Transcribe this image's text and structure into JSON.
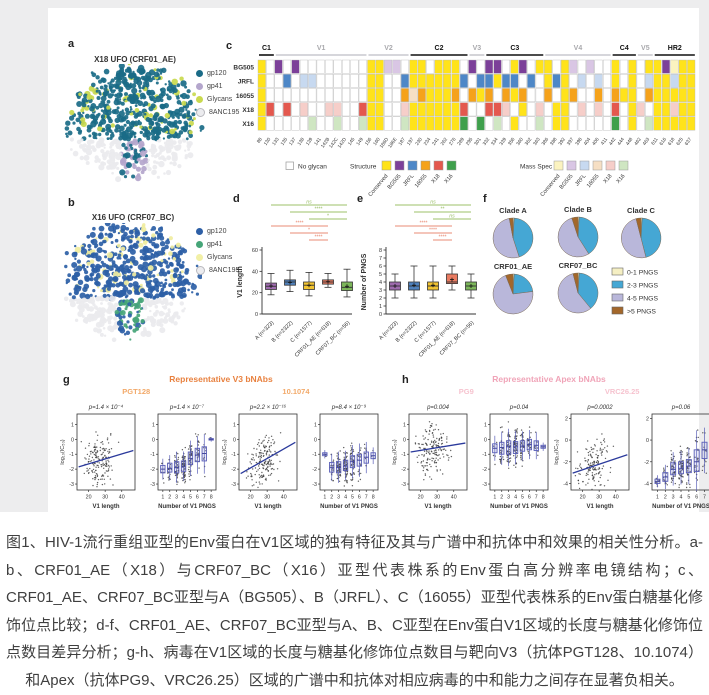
{
  "page_bg": "#ffffff",
  "a": {
    "label": "a",
    "title": "X18 UFO (CRF01_AE)",
    "legend": [
      {
        "label": "gp120",
        "color": "#1a6b87",
        "outline": false
      },
      {
        "label": "gp41",
        "color": "#b4a6cc",
        "outline": false
      },
      {
        "label": "Glycans",
        "color": "#c9d94e",
        "outline": false
      },
      {
        "label": "8ANC195",
        "color": "#ececef",
        "outline": true
      }
    ],
    "blob": {
      "gp120": "#1a6b87",
      "gp41": "#b4a6cc",
      "glycans": "#c9d94e",
      "fab": "#eaeaee",
      "seed": 7
    }
  },
  "b": {
    "label": "b",
    "title": "X16 UFO (CRF07_BC)",
    "legend": [
      {
        "label": "gp120",
        "color": "#2d5fa6",
        "outline": false
      },
      {
        "label": "gp41",
        "color": "#46a578",
        "outline": false
      },
      {
        "label": "Glycans",
        "color": "#f2f0a6",
        "outline": false
      },
      {
        "label": "8ANC195",
        "color": "#ececef",
        "outline": true
      }
    ],
    "blob": {
      "gp120": "#2d5fa6",
      "gp41": "#46a578",
      "glycans": "#f0eda0",
      "fab": "#eaeaee",
      "seed": 13
    }
  },
  "c": {
    "label": "c",
    "rows": [
      "BG505",
      "JRFL",
      "16055",
      "X18",
      "X16"
    ],
    "positions": [
      "88",
      "130",
      "133",
      "135",
      "137",
      "138",
      "139",
      "141",
      "142B",
      "142C",
      "142D",
      "145",
      "149",
      "156",
      "160",
      "186D",
      "186E",
      "187",
      "197",
      "230",
      "234",
      "241",
      "262",
      "276",
      "289",
      "295",
      "301",
      "332",
      "334",
      "339",
      "356",
      "360",
      "362",
      "363",
      "386",
      "388",
      "392",
      "397",
      "398",
      "404",
      "406",
      "411",
      "442",
      "444",
      "448",
      "462",
      "463",
      "611",
      "616",
      "618",
      "625",
      "637"
    ],
    "regions": [
      {
        "name": "C1",
        "start": 1,
        "end": 2,
        "strong": true
      },
      {
        "name": "V1",
        "start": 3,
        "end": 13,
        "strong": false
      },
      {
        "name": "V2",
        "start": 14,
        "end": 18,
        "strong": false
      },
      {
        "name": "C2",
        "start": 19,
        "end": 25,
        "strong": true
      },
      {
        "name": "V3",
        "start": 26,
        "end": 27,
        "strong": false
      },
      {
        "name": "C3",
        "start": 28,
        "end": 34,
        "strong": true
      },
      {
        "name": "V4",
        "start": 35,
        "end": 42,
        "strong": false
      },
      {
        "name": "C4",
        "start": 43,
        "end": 45,
        "strong": true
      },
      {
        "name": "V5",
        "start": 46,
        "end": 47,
        "strong": false
      },
      {
        "name": "HR2",
        "start": 48,
        "end": 52,
        "strong": true
      }
    ],
    "matrix": [
      "YWPWPWWWWWWWWYYppWYYWYYYWPWPPWYPWYYWYpWpWWYWYWYYPyYY",
      "YWWBWbbWWWWWWYYWWBYYYYYYBWBBYBBWBWYBYWbWbWYWYWbYYbYY",
      "YWWWWWWWWWWWWYYWWOoOYYYOWOYOWOYOWWOWYOWWOWOYYWOYYYYY",
      "YRWRWrWWrrWWRYYWWrYYYYYYRWWRRrWYWrWYYWrWrWRWYrWYYrYY",
      "YWWWWWgWWgWWgYYWWgYYYYYYGWGWgWYWWgWYYWWWWWGWYWgYYYYY"
    ],
    "color_codes": {
      "W": "#ffffff",
      "Y": "#ffe31a",
      "y": "#fbf3c0",
      "P": "#7c4099",
      "p": "#d9c6e4",
      "B": "#4d87c7",
      "b": "#c7d9f0",
      "O": "#f5a21b",
      "o": "#f6dfc4",
      "R": "#e4584e",
      "r": "#f6cec9",
      "G": "#3fa04c",
      "g": "#cfe6c2"
    },
    "legend": {
      "no_glycan_label": "No glycan",
      "structure_label": "Structure",
      "mass_spec_label": "Mass Spec",
      "names": [
        "Conserved",
        "BG505",
        "JRFL",
        "16055",
        "X18",
        "X16"
      ],
      "structure_colors": [
        "#ffe31a",
        "#7c4099",
        "#4d87c7",
        "#f5a21b",
        "#e4584e",
        "#3fa04c"
      ],
      "mass_spec_colors": [
        "#fbf3c0",
        "#d9c6e4",
        "#c7d9f0",
        "#f6dfc4",
        "#f6cec9",
        "#cfe6c2"
      ]
    }
  },
  "d": {
    "label": "d",
    "ylabel": "V1 length",
    "yticks": [
      0,
      20,
      40,
      60
    ],
    "ymax": 60,
    "categories": [
      "A (n=323)",
      "B (n=2322)",
      "C (n=1577)",
      "CRF01_AE (n=618)",
      "CRF07_BC (n=56)"
    ],
    "colors": [
      "#9e6bae",
      "#4f81bd",
      "#f2c431",
      "#e97b61",
      "#7cb65a"
    ],
    "stats": [
      {
        "lo": 18,
        "q1": 23,
        "med": 26,
        "q3": 29,
        "hi": 38,
        "mean": 26.3
      },
      {
        "lo": 21,
        "q1": 27,
        "med": 30,
        "q3": 32,
        "hi": 41,
        "mean": 29.6
      },
      {
        "lo": 17,
        "q1": 23,
        "med": 27,
        "q3": 30,
        "hi": 39,
        "mean": 26.9
      },
      {
        "lo": 25,
        "q1": 28,
        "med": 30,
        "q3": 32,
        "hi": 38,
        "mean": 30.3
      },
      {
        "lo": 16,
        "q1": 22,
        "med": 25,
        "q3": 30,
        "hi": 42,
        "mean": 26.0
      }
    ],
    "sig": [
      {
        "a": 0,
        "b": 4,
        "label": "ns",
        "color": "#9cc069"
      },
      {
        "a": 1,
        "b": 4,
        "label": "****",
        "color": "#9cc069"
      },
      {
        "a": 2,
        "b": 4,
        "label": "*",
        "color": "#9cc069"
      },
      {
        "a": 0,
        "b": 3,
        "label": "****",
        "color": "#e98b74"
      },
      {
        "a": 1,
        "b": 3,
        "label": "*",
        "color": "#e98b74"
      },
      {
        "a": 2,
        "b": 3,
        "label": "****",
        "color": "#e98b74"
      }
    ]
  },
  "e": {
    "label": "e",
    "ylabel": "Number of PNGS",
    "yticks": [
      0,
      1,
      2,
      3,
      4,
      5,
      6,
      7,
      8
    ],
    "ymax": 8,
    "categories": [
      "A (n=323)",
      "B (n=2322)",
      "C (n=1577)",
      "CRF01_AE (n=618)",
      "CRF07_BC (n=56)"
    ],
    "colors": [
      "#9e6bae",
      "#4f81bd",
      "#f2c431",
      "#e97b61",
      "#7cb65a"
    ],
    "stats": [
      {
        "lo": 2,
        "q1": 3,
        "med": 3.5,
        "q3": 4,
        "hi": 5,
        "mean": 3.5
      },
      {
        "lo": 2,
        "q1": 3,
        "med": 3.5,
        "q3": 4,
        "hi": 6,
        "mean": 3.6
      },
      {
        "lo": 2,
        "q1": 3,
        "med": 3.5,
        "q3": 4,
        "hi": 6,
        "mean": 3.6
      },
      {
        "lo": 3,
        "q1": 3.8,
        "med": 4,
        "q3": 5,
        "hi": 6,
        "mean": 4.3
      },
      {
        "lo": 2,
        "q1": 3,
        "med": 3.5,
        "q3": 4,
        "hi": 5,
        "mean": 3.5
      }
    ],
    "sig": [
      {
        "a": 0,
        "b": 4,
        "label": "ns",
        "color": "#9cc069"
      },
      {
        "a": 1,
        "b": 4,
        "label": "**",
        "color": "#9cc069"
      },
      {
        "a": 2,
        "b": 4,
        "label": "ns",
        "color": "#9cc069"
      },
      {
        "a": 0,
        "b": 3,
        "label": "****",
        "color": "#e98b74"
      },
      {
        "a": 1,
        "b": 3,
        "label": "****",
        "color": "#e98b74"
      },
      {
        "a": 2,
        "b": 3,
        "label": "****",
        "color": "#e98b74"
      }
    ]
  },
  "f": {
    "label": "f",
    "legend_labels": [
      "0-1 PNGS",
      "2-3 PNGS",
      "4-5 PNGS",
      ">5 PNGS"
    ],
    "slice_colors": [
      "#f5efc3",
      "#45a7d4",
      "#b9b7da",
      "#a3672a"
    ],
    "pies": [
      {
        "title": "Clade A",
        "values": [
          1,
          44,
          52,
          3
        ]
      },
      {
        "title": "Clade B",
        "values": [
          1,
          40,
          54,
          5
        ]
      },
      {
        "title": "Clade C",
        "values": [
          1,
          45,
          50,
          4
        ]
      },
      {
        "title": "CRF01_AE",
        "values": [
          1,
          22,
          71,
          6
        ]
      },
      {
        "title": "CRF07_BC",
        "values": [
          1,
          38,
          57,
          4
        ]
      }
    ]
  },
  "g": {
    "label": "g",
    "title": "Representative V3 bNAbs",
    "title_color": "#e8813f",
    "ab_color": "#f2a969",
    "ab_labels": [
      "PGT128",
      "10.1074"
    ],
    "ylabel": "log₁₀(IC₅₀)",
    "subplots": [
      {
        "p": "p=1.4 × 10⁻⁴",
        "type": "scatter",
        "xlabel": "V1 length",
        "xticks": [
          20,
          30,
          40
        ],
        "xrange": [
          13,
          48
        ],
        "yticks": [
          1,
          0,
          -1,
          -2,
          -3
        ],
        "yrange": [
          -3.4,
          1.7
        ],
        "trend": [
          [
            14,
            -1.85
          ],
          [
            47,
            -0.75
          ]
        ],
        "n": 165,
        "noise": 0.95,
        "seed": 11
      },
      {
        "p": "p=1.4 × 10⁻⁷",
        "type": "scatterbox",
        "xlabel": "Number of V1 PNGS",
        "xticks": [
          1,
          2,
          3,
          4,
          5,
          6,
          7,
          8
        ],
        "yticks": [
          1,
          0,
          -1,
          -2,
          -3
        ],
        "yrange": [
          -3.4,
          1.7
        ],
        "weights": [
          2,
          6,
          16,
          22,
          15,
          7,
          3,
          1
        ],
        "boxes": [
          [
            -2.25,
            -2.0,
            -1.75
          ],
          [
            -2.2,
            -1.95,
            -1.6
          ],
          [
            -2.25,
            -1.9,
            -1.5
          ],
          [
            -2.15,
            -1.85,
            -1.45
          ],
          [
            -1.7,
            -1.3,
            -0.85
          ],
          [
            -1.5,
            -1.05,
            -0.6
          ],
          [
            -1.45,
            -0.95,
            -0.5
          ],
          [
            -0.05,
            0.0,
            0.05
          ]
        ],
        "seed": 22
      },
      {
        "p": "p=2.2 × 10⁻¹⁶",
        "type": "scatter",
        "xlabel": "V1 length",
        "xticks": [
          20,
          30,
          40
        ],
        "xrange": [
          13,
          48
        ],
        "yticks": [
          1,
          0,
          -1,
          -2,
          -3
        ],
        "yrange": [
          -3.4,
          1.7
        ],
        "trend": [
          [
            14,
            -2.3
          ],
          [
            47,
            -0.2
          ]
        ],
        "n": 165,
        "noise": 0.9,
        "seed": 33
      },
      {
        "p": "p=8.4 × 10⁻⁹",
        "type": "scatterbox",
        "xlabel": "Number of V1 PNGS",
        "xticks": [
          1,
          2,
          3,
          4,
          5,
          6,
          7,
          8
        ],
        "yticks": [
          1,
          0,
          -1,
          -2,
          -3
        ],
        "yrange": [
          -3.4,
          1.7
        ],
        "weights": [
          1,
          6,
          16,
          22,
          15,
          7,
          3,
          1
        ],
        "boxes": [
          [
            -1.1,
            -1.0,
            -0.9
          ],
          [
            -2.2,
            -1.9,
            -1.55
          ],
          [
            -2.25,
            -1.9,
            -1.5
          ],
          [
            -2.1,
            -1.8,
            -1.4
          ],
          [
            -1.9,
            -1.5,
            -1.1
          ],
          [
            -1.8,
            -1.4,
            -1.0
          ],
          [
            -1.6,
            -1.2,
            -0.85
          ],
          [
            -1.3,
            -1.1,
            -0.9
          ]
        ],
        "seed": 44
      }
    ]
  },
  "h": {
    "label": "h",
    "title": "Representative Apex bNAbs",
    "title_color": "#f0a4b8",
    "ab_color": "#f6c3cf",
    "ab_labels": [
      "PG9",
      "VRC26.25"
    ],
    "ylabel": "log₁₀(IC₅₀)",
    "subplots": [
      {
        "p": "p=0.004",
        "type": "scatter",
        "xlabel": "V1 length",
        "xticks": [
          20,
          30,
          40
        ],
        "xrange": [
          13,
          48
        ],
        "yticks": [
          1,
          0,
          -1,
          -2,
          -3
        ],
        "yrange": [
          -3.4,
          1.7
        ],
        "trend": [
          [
            14,
            -0.85
          ],
          [
            47,
            -0.25
          ]
        ],
        "n": 165,
        "noise": 1.0,
        "seed": 55
      },
      {
        "p": "p=0.04",
        "type": "scatterbox",
        "xlabel": "Number of V1 PNGS",
        "xticks": [
          1,
          2,
          3,
          4,
          5,
          6,
          7,
          8
        ],
        "yticks": [
          1,
          0,
          -1,
          -2,
          -3
        ],
        "yrange": [
          -3.4,
          1.7
        ],
        "weights": [
          2,
          8,
          16,
          20,
          14,
          8,
          3,
          1
        ],
        "boxes": [
          [
            -0.9,
            -0.6,
            -0.3
          ],
          [
            -1.0,
            -0.55,
            -0.2
          ],
          [
            -1.0,
            -0.5,
            -0.1
          ],
          [
            -0.95,
            -0.5,
            -0.15
          ],
          [
            -0.8,
            -0.45,
            -0.1
          ],
          [
            -0.7,
            -0.35,
            0.0
          ],
          [
            -0.75,
            -0.4,
            -0.1
          ],
          [
            -0.6,
            -0.5,
            -0.4
          ]
        ],
        "seed": 66
      },
      {
        "p": "p=0.0002",
        "type": "scatter",
        "xlabel": "V1 length",
        "xticks": [
          20,
          30,
          40
        ],
        "xrange": [
          13,
          48
        ],
        "yticks": [
          2,
          0,
          -2,
          -4
        ],
        "yrange": [
          -4.6,
          2.4
        ],
        "trend": [
          [
            14,
            -3.05
          ],
          [
            47,
            -1.35
          ]
        ],
        "n": 150,
        "noise": 1.35,
        "seed": 77
      },
      {
        "p": "p=0.06",
        "type": "scatterbox",
        "xlabel": "Number of V1 PNGS",
        "xticks": [
          1,
          2,
          3,
          4,
          5,
          6,
          7
        ],
        "yticks": [
          2,
          0,
          -2,
          -4
        ],
        "yrange": [
          -4.6,
          2.4
        ],
        "weights": [
          3,
          6,
          14,
          18,
          14,
          8,
          4
        ],
        "boxes": [
          [
            -4.0,
            -3.8,
            -3.6
          ],
          [
            -3.8,
            -3.4,
            -3.0
          ],
          [
            -3.2,
            -2.7,
            -2.1
          ],
          [
            -3.1,
            -2.6,
            -2.0
          ],
          [
            -3.0,
            -2.4,
            -1.8
          ],
          [
            -2.9,
            -2.0,
            -0.9
          ],
          [
            -1.7,
            -0.9,
            -0.2
          ]
        ],
        "seed": 88
      }
    ]
  },
  "caption": "图1、HIV-1流行重组亚型的Env蛋白在V1区域的独有特征及其与广谱中和抗体中和效果的相关性分析。a-b、CRF01_AE（X18）与CRF07_BC（X16）亚型代表株系的Env蛋白高分辨率电镜结构；c、CRF01_AE、CRF07_BC亚型与A（BG505）、B（JRFL）、C（16055）亚型代表株系的Env蛋白糖基化修饰位点比较；d-f、CRF01_AE、CRF07_BC亚型与A、B、C亚型在Env蛋白V1区域的长度与糖基化修饰位点数目差异分析；g-h、病毒在V1区域的长度与糖基化修饰位点数目与靶向V3（抗体PGT128、10.1074）和Apex（抗体PG9、VRC26.25）区域的广谱中和抗体对相应病毒的中和能力之间存在显著负相关。"
}
